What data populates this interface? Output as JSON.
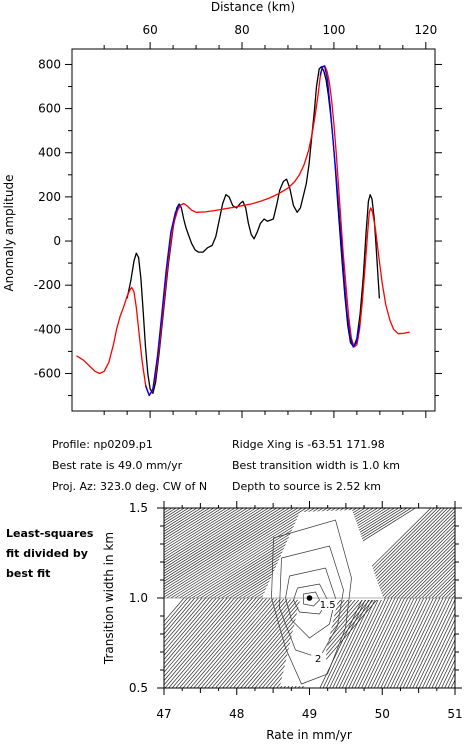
{
  "info": {
    "profile": "Profile: np0209.p1",
    "best_rate": "Best rate is 49.0 mm/yr",
    "proj_az": "Proj. Az: 323.0 deg. CW of N",
    "ridge_xing": "Ridge Xing is -63.51 171.98",
    "best_width": "Best transition width is 1.0 km",
    "depth": "Depth to source is   2.52 km"
  },
  "side_label": [
    "Least-squares",
    "fit divided by",
    "best fit"
  ],
  "colors": {
    "observed": "#000000",
    "model": "#ff0000",
    "best_fit": "#0000ff",
    "contour_dark": "#2a2a2a"
  },
  "chart_data": [
    {
      "type": "line",
      "xlabel": "Distance (km)",
      "ylabel": "Anomaly amplitude",
      "xlim": [
        43,
        122
      ],
      "ylim": [
        -770,
        870
      ],
      "xticks": [
        60,
        80,
        100,
        120
      ],
      "yticks": [
        -600,
        -400,
        -200,
        0,
        200,
        400,
        600,
        800
      ],
      "x_axis_position": "top",
      "series": [
        {
          "role": "observed",
          "color": "#000000",
          "points": [
            [
              55,
              -260
            ],
            [
              55.8,
              -180
            ],
            [
              56.5,
              -90
            ],
            [
              57,
              -55
            ],
            [
              57.5,
              -75
            ],
            [
              58,
              -170
            ],
            [
              58.5,
              -320
            ],
            [
              59,
              -480
            ],
            [
              59.5,
              -600
            ],
            [
              60,
              -670
            ],
            [
              60.6,
              -690
            ],
            [
              61.2,
              -640
            ],
            [
              62,
              -500
            ],
            [
              63,
              -300
            ],
            [
              64,
              -100
            ],
            [
              65,
              60
            ],
            [
              65.8,
              150
            ],
            [
              66.3,
              168
            ],
            [
              66.8,
              150
            ],
            [
              67.3,
              100
            ],
            [
              67.8,
              60
            ],
            [
              68.3,
              30
            ],
            [
              69,
              -10
            ],
            [
              69.8,
              -40
            ],
            [
              70.5,
              -50
            ],
            [
              71.5,
              -50
            ],
            [
              72.5,
              -30
            ],
            [
              73.5,
              -20
            ],
            [
              74.3,
              20
            ],
            [
              75,
              90
            ],
            [
              75.8,
              170
            ],
            [
              76.5,
              210
            ],
            [
              77.2,
              200
            ],
            [
              78,
              160
            ],
            [
              78.8,
              150
            ],
            [
              79.6,
              170
            ],
            [
              80.2,
              180
            ],
            [
              80.8,
              150
            ],
            [
              81.4,
              80
            ],
            [
              82,
              30
            ],
            [
              82.6,
              10
            ],
            [
              83.3,
              40
            ],
            [
              84,
              80
            ],
            [
              84.8,
              100
            ],
            [
              85.5,
              90
            ],
            [
              86.2,
              95
            ],
            [
              86.8,
              100
            ],
            [
              87.5,
              160
            ],
            [
              88.2,
              230
            ],
            [
              89,
              270
            ],
            [
              89.7,
              280
            ],
            [
              90.4,
              240
            ],
            [
              91.2,
              160
            ],
            [
              92,
              130
            ],
            [
              92.7,
              150
            ],
            [
              93.3,
              200
            ],
            [
              94,
              260
            ],
            [
              94.6,
              350
            ],
            [
              95.2,
              480
            ],
            [
              95.7,
              580
            ],
            [
              96.2,
              700
            ],
            [
              96.8,
              780
            ],
            [
              97.3,
              790
            ],
            [
              97.8,
              770
            ],
            [
              98.3,
              730
            ],
            [
              98.8,
              660
            ],
            [
              99.3,
              570
            ],
            [
              99.8,
              460
            ],
            [
              100.3,
              330
            ],
            [
              100.8,
              180
            ],
            [
              101.3,
              40
            ],
            [
              101.8,
              -100
            ],
            [
              102.4,
              -250
            ],
            [
              103,
              -380
            ],
            [
              103.6,
              -460
            ],
            [
              104.3,
              -480
            ],
            [
              105,
              -440
            ],
            [
              105.7,
              -330
            ],
            [
              106.4,
              -160
            ],
            [
              107,
              40
            ],
            [
              107.5,
              180
            ],
            [
              107.9,
              210
            ],
            [
              108.3,
              190
            ],
            [
              108.8,
              100
            ],
            [
              109.3,
              -60
            ],
            [
              109.9,
              -260
            ]
          ]
        },
        {
          "role": "model",
          "color": "#ff0000",
          "points": [
            [
              44,
              -520
            ],
            [
              45.5,
              -540
            ],
            [
              47,
              -570
            ],
            [
              48,
              -590
            ],
            [
              49,
              -600
            ],
            [
              50,
              -590
            ],
            [
              51,
              -550
            ],
            [
              52,
              -470
            ],
            [
              52.7,
              -400
            ],
            [
              53.5,
              -340
            ],
            [
              54.2,
              -300
            ],
            [
              55,
              -250
            ],
            [
              55.6,
              -222
            ],
            [
              56,
              -210
            ],
            [
              56.5,
              -230
            ],
            [
              57,
              -300
            ],
            [
              57.6,
              -420
            ],
            [
              58.3,
              -550
            ],
            [
              59,
              -650
            ],
            [
              59.8,
              -700
            ],
            [
              60.5,
              -680
            ],
            [
              61.2,
              -610
            ],
            [
              62,
              -480
            ],
            [
              63,
              -280
            ],
            [
              64,
              -80
            ],
            [
              65,
              70
            ],
            [
              66,
              140
            ],
            [
              66.6,
              162
            ],
            [
              67.3,
              170
            ],
            [
              68,
              160
            ],
            [
              69,
              140
            ],
            [
              70,
              130
            ],
            [
              72,
              132
            ],
            [
              74,
              138
            ],
            [
              76,
              145
            ],
            [
              78,
              152
            ],
            [
              80,
              160
            ],
            [
              82,
              168
            ],
            [
              84,
              180
            ],
            [
              86,
              195
            ],
            [
              88,
              215
            ],
            [
              90,
              240
            ],
            [
              91.5,
              270
            ],
            [
              92.5,
              300
            ],
            [
              93.5,
              345
            ],
            [
              94.5,
              410
            ],
            [
              95.3,
              490
            ],
            [
              96,
              580
            ],
            [
              96.6,
              670
            ],
            [
              97,
              740
            ],
            [
              97.5,
              790
            ],
            [
              98,
              795
            ],
            [
              98.5,
              770
            ],
            [
              99,
              720
            ],
            [
              99.5,
              640
            ],
            [
              100,
              530
            ],
            [
              100.5,
              400
            ],
            [
              101,
              250
            ],
            [
              101.5,
              100
            ],
            [
              102,
              -50
            ],
            [
              102.6,
              -200
            ],
            [
              103.2,
              -340
            ],
            [
              103.8,
              -440
            ],
            [
              104.4,
              -480
            ],
            [
              105,
              -470
            ],
            [
              105.6,
              -400
            ],
            [
              106.2,
              -270
            ],
            [
              106.8,
              -110
            ],
            [
              107.3,
              30
            ],
            [
              107.7,
              130
            ],
            [
              108,
              150
            ],
            [
              108.4,
              130
            ],
            [
              109,
              60
            ],
            [
              109.7,
              -60
            ],
            [
              110.5,
              -190
            ],
            [
              111.3,
              -290
            ],
            [
              112.2,
              -360
            ],
            [
              113,
              -400
            ],
            [
              114,
              -420
            ],
            [
              115.3,
              -418
            ],
            [
              116.5,
              -412
            ]
          ]
        },
        {
          "role": "best_fit",
          "color": "#0000ff",
          "points": [
            [
              59,
              -655
            ],
            [
              59.8,
              -700
            ],
            [
              60.6,
              -670
            ],
            [
              61.6,
              -520
            ],
            [
              62.5,
              -340
            ],
            [
              63.5,
              -130
            ],
            [
              64.5,
              40
            ],
            [
              65.5,
              130
            ],
            [
              66.2,
              160
            ],
            [
              66.6,
              165
            ]
          ]
        },
        {
          "role": "best_fit",
          "color": "#0000ff",
          "points": [
            [
              97,
              750
            ],
            [
              97.5,
              790
            ],
            [
              98,
              790
            ],
            [
              98.6,
              730
            ],
            [
              99.2,
              610
            ],
            [
              99.8,
              460
            ],
            [
              100.4,
              320
            ],
            [
              101,
              160
            ],
            [
              101.6,
              0
            ],
            [
              102.2,
              -170
            ],
            [
              102.8,
              -320
            ],
            [
              103.5,
              -430
            ],
            [
              104.2,
              -480
            ],
            [
              104.9,
              -460
            ],
            [
              105.6,
              -380
            ]
          ]
        }
      ]
    },
    {
      "type": "heatmap",
      "subtype": "contour",
      "xlabel": "Rate in mm/yr",
      "ylabel": "Transition width in km",
      "xlim": [
        47,
        51
      ],
      "ylim": [
        0.5,
        1.5
      ],
      "xticks": [
        47,
        48,
        49,
        50,
        51
      ],
      "yticks": [
        0.5,
        1.0,
        1.5
      ],
      "best_fit_point": [
        49.0,
        1.0
      ],
      "contour_labels": [
        {
          "text": "1.5",
          "x": 49.25,
          "y": 0.95
        },
        {
          "text": "2",
          "x": 49.12,
          "y": 0.65
        }
      ]
    }
  ]
}
